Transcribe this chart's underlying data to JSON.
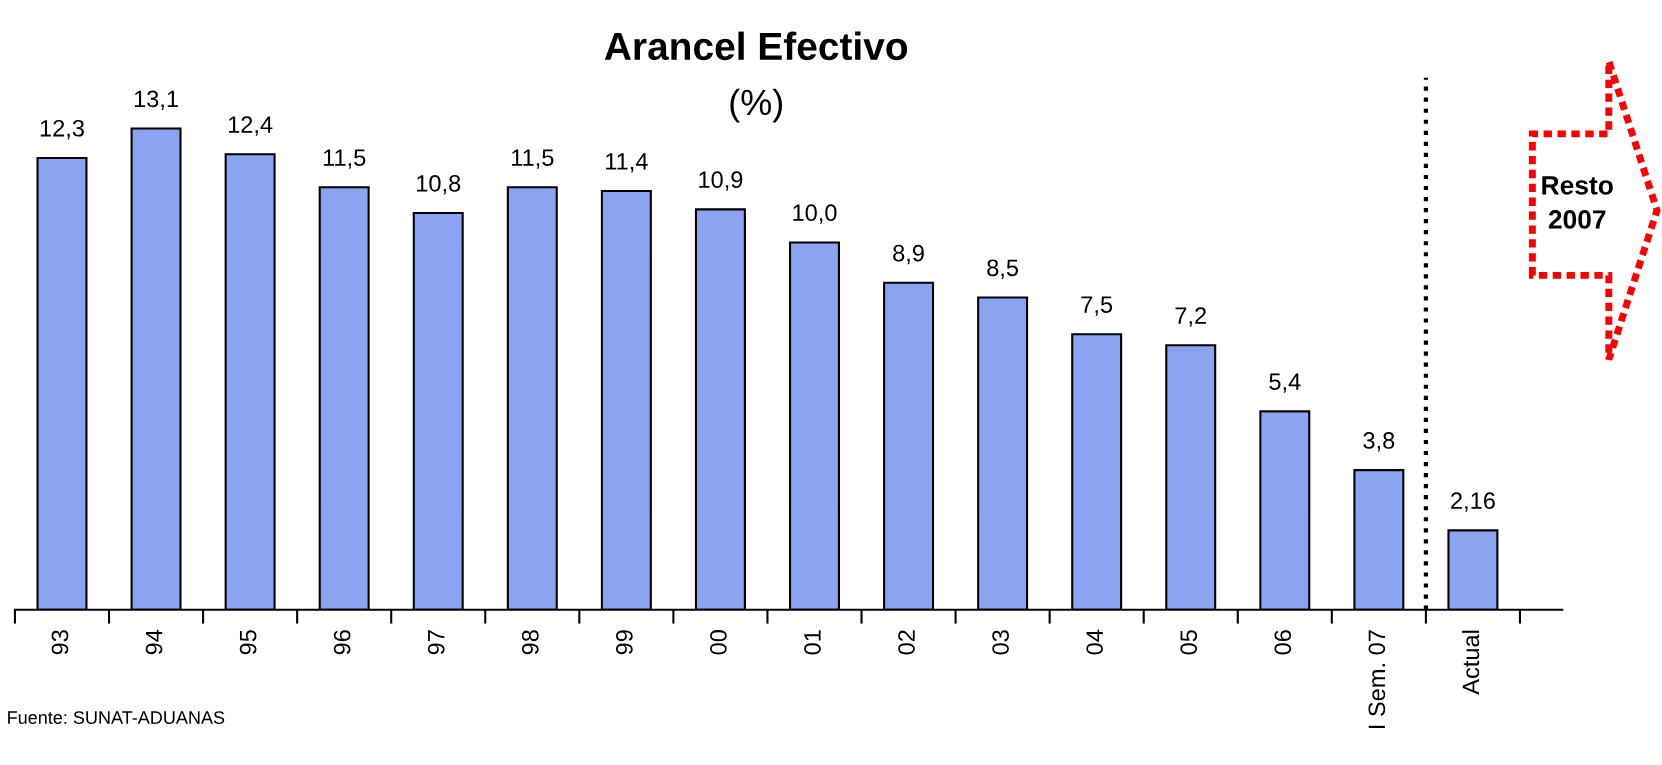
{
  "chart_data": {
    "type": "bar",
    "title": "Arancel Efectivo",
    "subtitle": "(%)",
    "categories": [
      "93",
      "94",
      "95",
      "96",
      "97",
      "98",
      "99",
      "00",
      "01",
      "02",
      "03",
      "04",
      "05",
      "06",
      "I Sem. 07",
      "Actual"
    ],
    "values": [
      12.3,
      13.1,
      12.4,
      11.5,
      10.8,
      11.5,
      11.4,
      10.9,
      10.0,
      8.9,
      8.5,
      7.5,
      7.2,
      5.4,
      3.8,
      2.16
    ],
    "value_labels": [
      "12,3",
      "13,1",
      "12,4",
      "11,5",
      "10,8",
      "11,5",
      "11,4",
      "10,9",
      "10,0",
      "8,9",
      "8,5",
      "7,5",
      "7,2",
      "5,4",
      "3,8",
      "2,16"
    ],
    "color": "#8aa4f2",
    "annotations": [
      "Fuente: SUNAT-ADUANAS",
      "Resto 2007"
    ],
    "grid": false
  }
}
